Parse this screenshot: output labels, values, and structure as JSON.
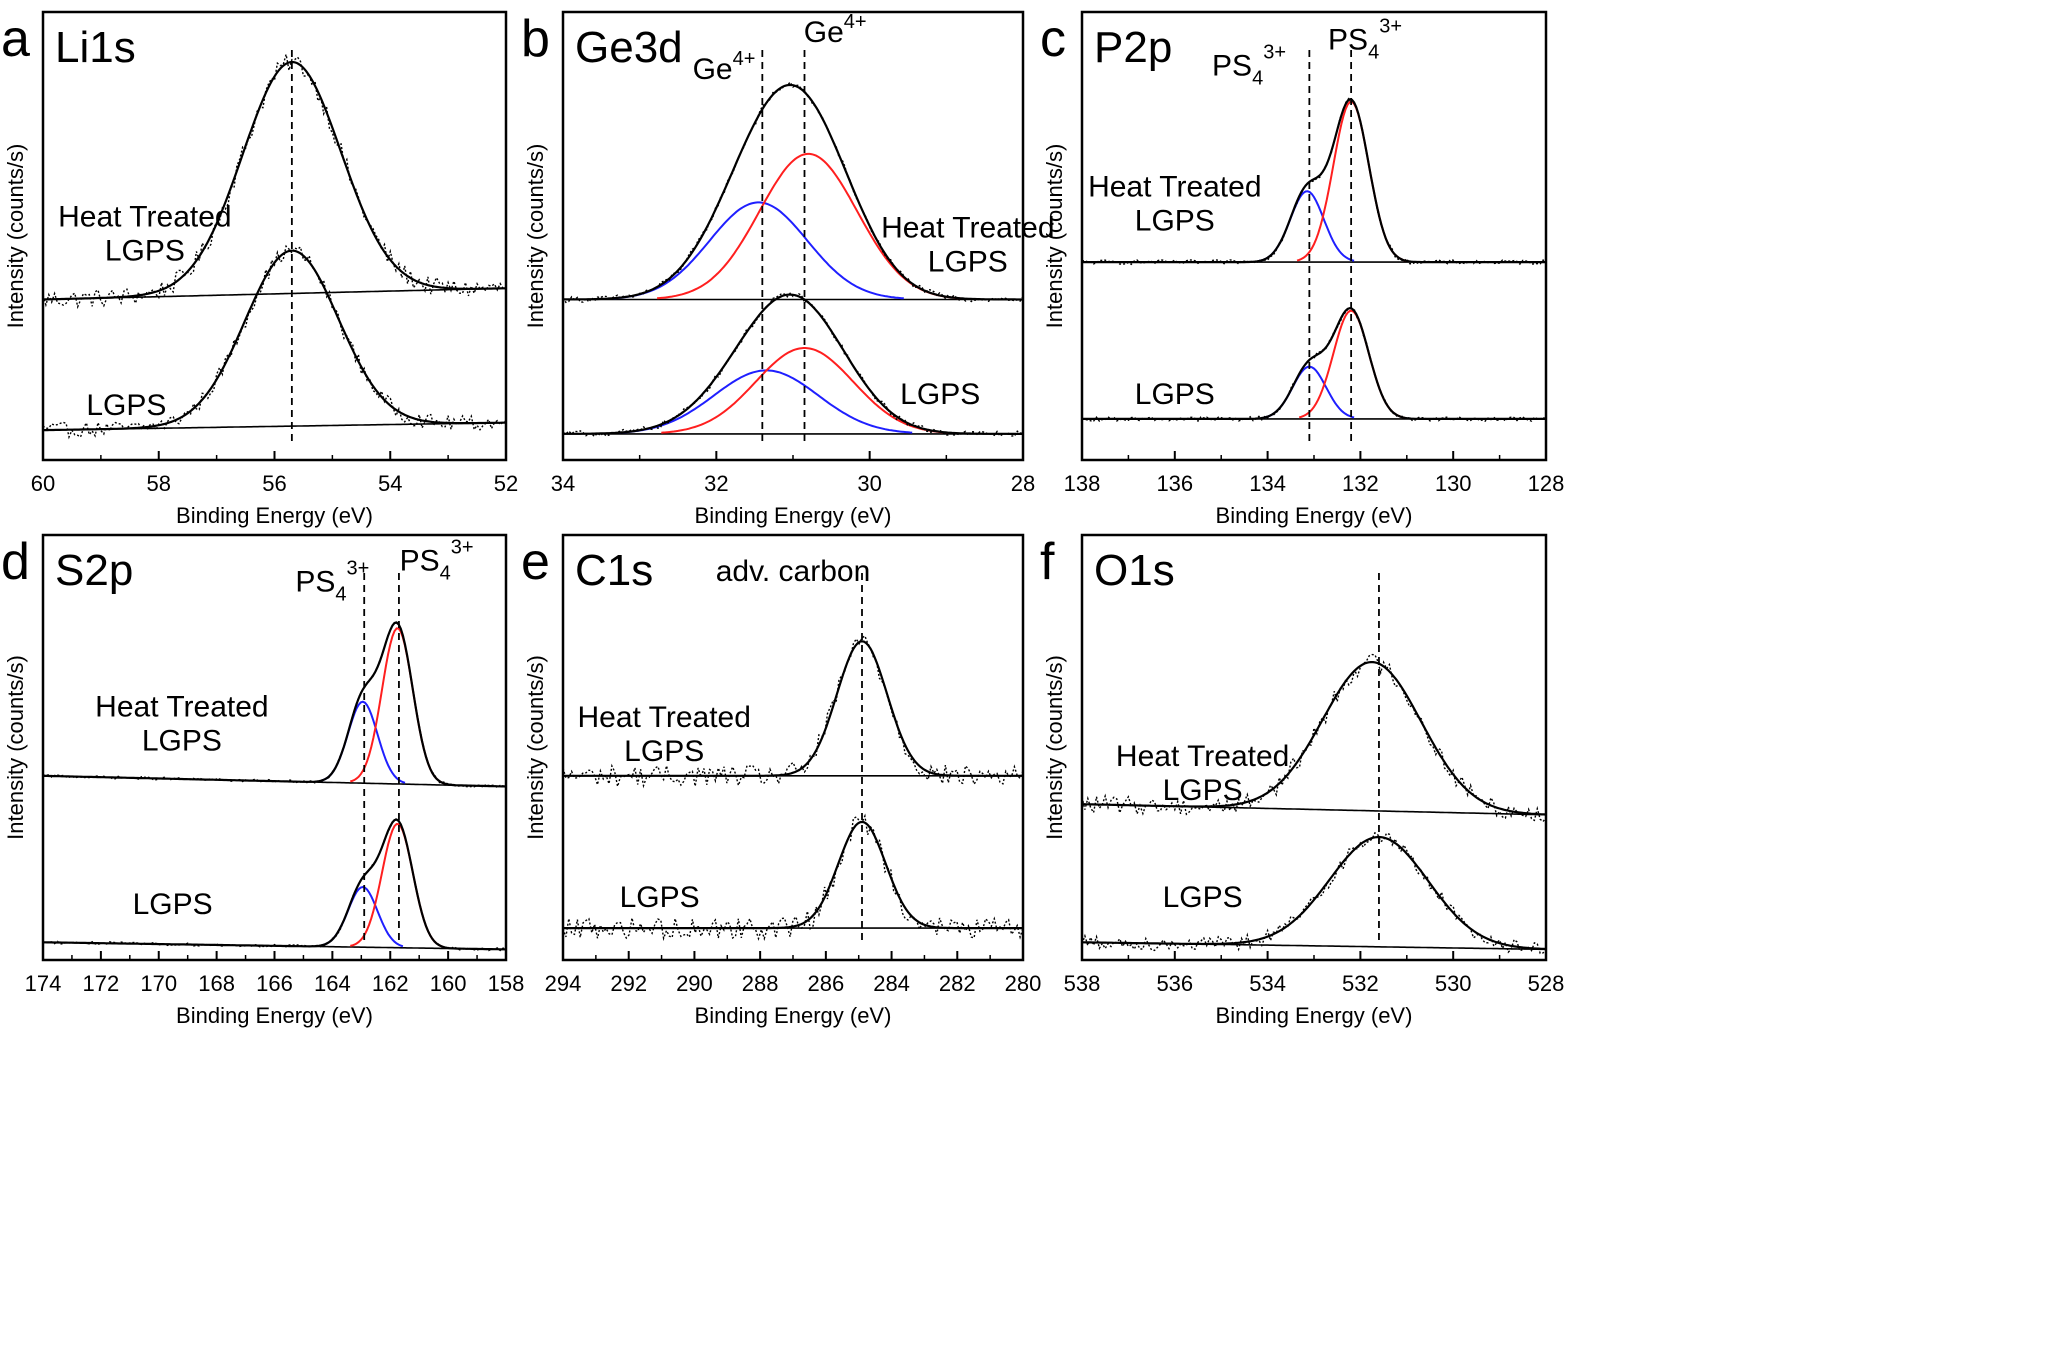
{
  "figure": {
    "xlabel": "Binding Energy (eV)",
    "ylabel": "Intensity (counts/s)",
    "sample_top": "Heat Treated LGPS",
    "sample_bottom": "LGPS"
  },
  "chart_data": [
    {
      "panel_letter": "a",
      "title": "Li1s",
      "type": "line",
      "xlabel": "Binding Energy (eV)",
      "ylabel": "Intensity (counts/s)",
      "xlim": [
        60,
        52
      ],
      "x_reversed": true,
      "xticks": [
        60,
        58,
        56,
        54,
        52
      ],
      "yticks": "none",
      "grid": false,
      "markers": [
        55.7
      ],
      "annotations": [],
      "series": [
        {
          "name": "Heat Treated LGPS",
          "label_lines": [
            "Heat Treated",
            "LGPS"
          ],
          "baseline_left": 0.43,
          "baseline_right": 0.46,
          "noise": 0.025,
          "peaks": [
            {
              "center": 55.7,
              "fwhm": 2.0,
              "height": 0.62,
              "color": "#000000"
            }
          ]
        },
        {
          "name": "LGPS",
          "label_lines": [
            "LGPS"
          ],
          "baseline_left": 0.08,
          "baseline_right": 0.1,
          "noise": 0.02,
          "peaks": [
            {
              "center": 55.7,
              "fwhm": 1.9,
              "height": 0.47,
              "color": "#000000"
            }
          ]
        }
      ]
    },
    {
      "panel_letter": "b",
      "title": "Ge3d",
      "type": "line",
      "xlabel": "Binding Energy (eV)",
      "ylabel": "Intensity (counts/s)",
      "xlim": [
        34,
        28
      ],
      "x_reversed": true,
      "xticks": [
        34,
        32,
        30,
        28
      ],
      "yticks": "none",
      "grid": false,
      "markers": [
        31.4,
        30.85
      ],
      "annotations": [
        {
          "text": "Ge",
          "sup": "4+",
          "x": 31.9,
          "y": 1.02
        },
        {
          "text": "Ge",
          "sup": "4+",
          "x": 30.45,
          "y": 1.12
        }
      ],
      "series": [
        {
          "name": "Heat Treated LGPS",
          "label_lines": [
            "Heat Treated",
            "LGPS"
          ],
          "baseline_left": 0.43,
          "baseline_right": 0.43,
          "noise": 0.008,
          "peaks": [
            {
              "center": 31.45,
              "fwhm": 1.5,
              "height": 0.26,
              "color": "#1f1fff"
            },
            {
              "center": 30.8,
              "fwhm": 1.5,
              "height": 0.39,
              "color": "#ff1f1f"
            }
          ]
        },
        {
          "name": "LGPS",
          "label_lines": [
            "LGPS"
          ],
          "baseline_left": 0.07,
          "baseline_right": 0.07,
          "noise": 0.008,
          "peaks": [
            {
              "center": 31.35,
              "fwhm": 1.6,
              "height": 0.17,
              "color": "#1f1fff"
            },
            {
              "center": 30.85,
              "fwhm": 1.5,
              "height": 0.23,
              "color": "#ff1f1f"
            }
          ]
        }
      ]
    },
    {
      "panel_letter": "c",
      "title": "P2p",
      "type": "line",
      "xlabel": "Binding Energy (eV)",
      "ylabel": "Intensity (counts/s)",
      "xlim": [
        138,
        128
      ],
      "x_reversed": true,
      "xticks": [
        138,
        136,
        134,
        132,
        130,
        128
      ],
      "yticks": "none",
      "grid": false,
      "markers": [
        133.1,
        132.2
      ],
      "annotations": [
        {
          "text": "PS",
          "sub": "4",
          "sup": "3+",
          "x": 134.4,
          "y": 1.03
        },
        {
          "text": "PS",
          "sub": "4",
          "sup": "3+",
          "x": 131.9,
          "y": 1.1
        }
      ],
      "series": [
        {
          "name": "Heat Treated LGPS",
          "label_lines": [
            "Heat Treated",
            "LGPS"
          ],
          "baseline_left": 0.53,
          "baseline_right": 0.53,
          "noise": 0.006,
          "peaks": [
            {
              "center": 133.15,
              "fwhm": 0.85,
              "height": 0.19,
              "color": "#1f1fff"
            },
            {
              "center": 132.2,
              "fwhm": 0.9,
              "height": 0.43,
              "color": "#ff1f1f"
            }
          ]
        },
        {
          "name": "LGPS",
          "label_lines": [
            "LGPS"
          ],
          "baseline_left": 0.11,
          "baseline_right": 0.11,
          "noise": 0.006,
          "peaks": [
            {
              "center": 133.1,
              "fwhm": 0.85,
              "height": 0.14,
              "color": "#1f1fff"
            },
            {
              "center": 132.2,
              "fwhm": 0.9,
              "height": 0.29,
              "color": "#ff1f1f"
            }
          ]
        }
      ]
    },
    {
      "panel_letter": "d",
      "title": "S2p",
      "type": "line",
      "xlabel": "Binding Energy (eV)",
      "ylabel": "Intensity (counts/s)",
      "xlim": [
        174,
        158
      ],
      "x_reversed": true,
      "xticks": [
        174,
        172,
        170,
        168,
        166,
        164,
        162,
        160,
        158
      ],
      "yticks": "none",
      "grid": false,
      "markers": [
        162.9,
        161.7
      ],
      "annotations": [
        {
          "text": "PS",
          "sub": "4",
          "sup": "3+",
          "x": 164.0,
          "y": 1.04
        },
        {
          "text": "PS",
          "sub": "4",
          "sup": "3+",
          "x": 160.4,
          "y": 1.1
        }
      ],
      "series": [
        {
          "name": "Heat Treated LGPS",
          "label_lines": [
            "Heat Treated",
            "LGPS"
          ],
          "baseline_left": 0.52,
          "baseline_right": 0.49,
          "noise": 0.004,
          "peaks": [
            {
              "center": 162.95,
              "fwhm": 1.2,
              "height": 0.23,
              "color": "#1f1fff"
            },
            {
              "center": 161.75,
              "fwhm": 1.25,
              "height": 0.44,
              "color": "#ff1f1f"
            }
          ]
        },
        {
          "name": "LGPS",
          "label_lines": [
            "LGPS"
          ],
          "baseline_left": 0.05,
          "baseline_right": 0.03,
          "noise": 0.004,
          "peaks": [
            {
              "center": 162.95,
              "fwhm": 1.2,
              "height": 0.17,
              "color": "#1f1fff"
            },
            {
              "center": 161.75,
              "fwhm": 1.25,
              "height": 0.35,
              "color": "#ff1f1f"
            }
          ]
        }
      ]
    },
    {
      "panel_letter": "e",
      "title": "C1s",
      "type": "line",
      "xlabel": "Binding Energy (eV)",
      "ylabel": "Intensity (counts/s)",
      "xlim": [
        294,
        280
      ],
      "x_reversed": true,
      "xticks": [
        294,
        292,
        290,
        288,
        286,
        284,
        282,
        280
      ],
      "yticks": "none",
      "grid": false,
      "markers": [
        284.9
      ],
      "annotations": [
        {
          "text": "adv. carbon",
          "x": 287.0,
          "y": 1.07
        }
      ],
      "series": [
        {
          "name": "Heat Treated LGPS",
          "label_lines": [
            "Heat Treated",
            "LGPS"
          ],
          "baseline_left": 0.52,
          "baseline_right": 0.52,
          "noise": 0.03,
          "peaks": [
            {
              "center": 284.9,
              "fwhm": 1.8,
              "height": 0.38,
              "color": "#000000"
            }
          ]
        },
        {
          "name": "LGPS",
          "label_lines": [
            "LGPS"
          ],
          "baseline_left": 0.09,
          "baseline_right": 0.09,
          "noise": 0.03,
          "peaks": [
            {
              "center": 284.9,
              "fwhm": 1.7,
              "height": 0.3,
              "color": "#000000"
            }
          ]
        }
      ]
    },
    {
      "panel_letter": "f",
      "title": "O1s",
      "type": "line",
      "xlabel": "Binding Energy (eV)",
      "ylabel": "Intensity (counts/s)",
      "xlim": [
        538,
        528
      ],
      "x_reversed": true,
      "xticks": [
        538,
        536,
        534,
        532,
        530,
        528
      ],
      "yticks": "none",
      "grid": false,
      "markers": [
        531.6
      ],
      "annotations": [],
      "series": [
        {
          "name": "Heat Treated LGPS",
          "label_lines": [
            "Heat Treated",
            "LGPS"
          ],
          "baseline_left": 0.44,
          "baseline_right": 0.41,
          "noise": 0.025,
          "peaks": [
            {
              "center": 531.75,
              "fwhm": 2.5,
              "height": 0.42,
              "color": "#000000"
            }
          ]
        },
        {
          "name": "LGPS",
          "label_lines": [
            "LGPS"
          ],
          "baseline_left": 0.05,
          "baseline_right": 0.03,
          "noise": 0.02,
          "peaks": [
            {
              "center": 531.6,
              "fwhm": 2.5,
              "height": 0.31,
              "color": "#000000"
            }
          ]
        }
      ]
    }
  ]
}
